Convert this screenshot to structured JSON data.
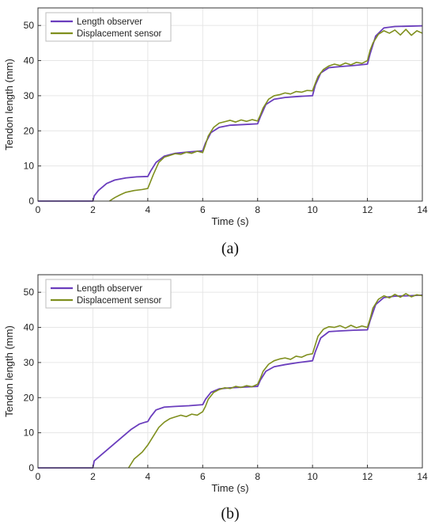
{
  "colors": {
    "length_observer": "#6a3dbd",
    "displacement_sensor": "#7f8f1e",
    "axis": "#333333",
    "grid": "#e6e6e6",
    "legend_border": "#bdbdbd"
  },
  "chart_data": [
    {
      "type": "line",
      "caption": "(a)",
      "xlabel": "Time (s)",
      "ylabel": "Tendon length (mm)",
      "xlim": [
        0,
        14
      ],
      "ylim": [
        0,
        55
      ],
      "xticks": [
        0,
        2,
        4,
        6,
        8,
        10,
        12,
        14
      ],
      "yticks": [
        0,
        10,
        20,
        30,
        40,
        50
      ],
      "grid": true,
      "legend_position": "top-left",
      "series": [
        {
          "name": "Length observer",
          "color": "#6a3dbd",
          "x": [
            0,
            2.0,
            2.05,
            2.2,
            2.5,
            2.8,
            3.2,
            3.6,
            4.0,
            4.1,
            4.3,
            4.6,
            5.0,
            5.5,
            6.0,
            6.1,
            6.3,
            6.6,
            7.0,
            7.5,
            8.0,
            8.1,
            8.3,
            8.6,
            9.0,
            9.5,
            10.0,
            10.1,
            10.3,
            10.6,
            11.0,
            11.5,
            12.0,
            12.1,
            12.3,
            12.6,
            13.0,
            13.5,
            14.0
          ],
          "y": [
            0,
            0,
            1.5,
            3.0,
            5.0,
            6.0,
            6.6,
            6.9,
            7.0,
            8.5,
            11.0,
            12.8,
            13.6,
            14.0,
            14.3,
            16.5,
            19.5,
            21.0,
            21.6,
            21.8,
            22.0,
            24.0,
            27.5,
            29.0,
            29.5,
            29.8,
            30.0,
            33.0,
            36.5,
            38.0,
            38.3,
            38.6,
            39.0,
            42.0,
            47.0,
            49.3,
            49.7,
            49.8,
            49.9
          ]
        },
        {
          "name": "Displacement sensor",
          "color": "#7f8f1e",
          "x": [
            2.6,
            2.8,
            3.0,
            3.2,
            3.5,
            3.8,
            4.0,
            4.2,
            4.4,
            4.6,
            4.8,
            5.0,
            5.2,
            5.4,
            5.6,
            5.8,
            6.0,
            6.1,
            6.2,
            6.4,
            6.6,
            6.8,
            7.0,
            7.2,
            7.4,
            7.6,
            7.8,
            8.0,
            8.1,
            8.2,
            8.4,
            8.6,
            8.8,
            9.0,
            9.2,
            9.4,
            9.6,
            9.8,
            10.0,
            10.1,
            10.2,
            10.4,
            10.6,
            10.8,
            11.0,
            11.2,
            11.4,
            11.6,
            11.8,
            12.0,
            12.1,
            12.2,
            12.4,
            12.6,
            12.8,
            13.0,
            13.2,
            13.4,
            13.6,
            13.8,
            14.0
          ],
          "y": [
            0.0,
            1.0,
            1.8,
            2.5,
            3.0,
            3.3,
            3.6,
            7.5,
            11.0,
            12.5,
            13.0,
            13.5,
            13.3,
            13.9,
            13.6,
            14.2,
            13.8,
            16.0,
            18.5,
            21.0,
            22.2,
            22.6,
            23.0,
            22.5,
            23.1,
            22.7,
            23.2,
            22.8,
            24.5,
            26.5,
            29.0,
            30.0,
            30.3,
            30.8,
            30.5,
            31.2,
            31.0,
            31.5,
            31.4,
            33.5,
            35.5,
            37.5,
            38.5,
            39.0,
            38.6,
            39.3,
            38.8,
            39.5,
            39.2,
            40.0,
            43.0,
            45.0,
            47.5,
            48.5,
            47.8,
            48.7,
            47.3,
            48.9,
            47.2,
            48.5,
            47.8
          ]
        }
      ]
    },
    {
      "type": "line",
      "caption": "(b)",
      "xlabel": "Time (s)",
      "ylabel": "Tendon length (mm)",
      "xlim": [
        0,
        14
      ],
      "ylim": [
        0,
        55
      ],
      "xticks": [
        0,
        2,
        4,
        6,
        8,
        10,
        12,
        14
      ],
      "yticks": [
        0,
        10,
        20,
        30,
        40,
        50
      ],
      "grid": true,
      "legend_position": "top-left",
      "series": [
        {
          "name": "Length observer",
          "color": "#6a3dbd",
          "x": [
            0,
            2.0,
            2.05,
            2.2,
            2.5,
            2.8,
            3.1,
            3.4,
            3.7,
            3.9,
            4.0,
            4.1,
            4.3,
            4.6,
            5.0,
            5.5,
            6.0,
            6.1,
            6.3,
            6.6,
            7.0,
            7.5,
            8.0,
            8.1,
            8.3,
            8.6,
            9.0,
            9.5,
            10.0,
            10.1,
            10.3,
            10.6,
            11.0,
            11.5,
            12.0,
            12.1,
            12.3,
            12.6,
            13.0,
            13.5,
            14.0
          ],
          "y": [
            0,
            0,
            2.0,
            3.0,
            5.0,
            7.0,
            9.0,
            11.0,
            12.5,
            13.0,
            13.2,
            14.5,
            16.5,
            17.3,
            17.5,
            17.7,
            18.0,
            19.5,
            21.5,
            22.5,
            22.8,
            23.0,
            23.2,
            25.0,
            27.5,
            28.8,
            29.4,
            30.0,
            30.5,
            33.0,
            37.0,
            38.8,
            39.0,
            39.2,
            39.3,
            42.0,
            46.5,
            48.5,
            48.9,
            49.0,
            49.2
          ]
        },
        {
          "name": "Displacement sensor",
          "color": "#7f8f1e",
          "x": [
            3.3,
            3.5,
            3.8,
            4.0,
            4.2,
            4.4,
            4.6,
            4.8,
            5.0,
            5.2,
            5.4,
            5.6,
            5.8,
            6.0,
            6.1,
            6.2,
            6.4,
            6.6,
            6.8,
            7.0,
            7.2,
            7.4,
            7.6,
            7.8,
            8.0,
            8.1,
            8.2,
            8.4,
            8.6,
            8.8,
            9.0,
            9.2,
            9.4,
            9.6,
            9.8,
            10.0,
            10.1,
            10.2,
            10.4,
            10.6,
            10.8,
            11.0,
            11.2,
            11.4,
            11.6,
            11.8,
            12.0,
            12.1,
            12.2,
            12.4,
            12.6,
            12.8,
            13.0,
            13.2,
            13.4,
            13.6,
            13.8,
            14.0
          ],
          "y": [
            0.0,
            2.5,
            4.5,
            6.5,
            9.0,
            11.5,
            13.0,
            14.0,
            14.5,
            15.0,
            14.6,
            15.3,
            15.0,
            16.0,
            17.5,
            19.5,
            21.5,
            22.3,
            22.8,
            22.6,
            23.2,
            22.9,
            23.4,
            23.1,
            23.8,
            25.5,
            27.5,
            29.5,
            30.5,
            31.0,
            31.3,
            30.9,
            31.8,
            31.5,
            32.2,
            32.5,
            35.0,
            37.5,
            39.5,
            40.2,
            40.0,
            40.5,
            39.8,
            40.6,
            39.9,
            40.4,
            40.0,
            42.5,
            45.5,
            48.0,
            49.0,
            48.4,
            49.4,
            48.6,
            49.6,
            48.7,
            49.3,
            49.0
          ]
        }
      ]
    }
  ]
}
